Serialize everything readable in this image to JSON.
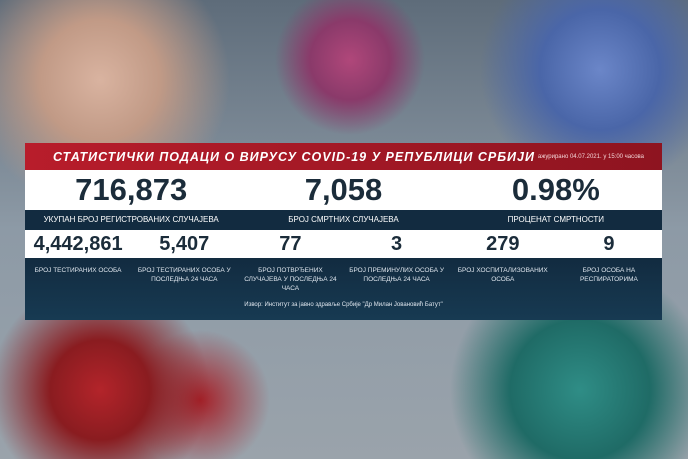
{
  "header": {
    "title": "СТАТИСТИЧКИ ПОДАЦИ О ВИРУСУ COVID-19 У РЕПУБЛИЦИ СРБИЈИ",
    "updated": "ажурирано 04.07.2021. у 15:00 часова"
  },
  "main_stats": [
    {
      "value": "716,873",
      "label": "УКУПАН БРОЈ РЕГИСТРОВАНИХ СЛУЧАЈЕВА"
    },
    {
      "value": "7,058",
      "label": "БРОЈ СМРТНИХ СЛУЧАЈЕВА"
    },
    {
      "value": "0.98%",
      "label": "ПРОЦЕНАТ СМРТНОСТИ"
    }
  ],
  "sub_stats": [
    {
      "value": "4,442,861",
      "label": "БРОЈ ТЕСТИРАНИХ ОСОБА"
    },
    {
      "value": "5,407",
      "label": "БРОЈ ТЕСТИРАНИХ ОСОБА У ПОСЛЕДЊА 24 ЧАСА"
    },
    {
      "value": "77",
      "label": "БРОЈ ПОТВРЂЕНИХ СЛУЧАЈЕВА У ПОСЛЕДЊА 24 ЧАСА"
    },
    {
      "value": "3",
      "label": "БРОЈ ПРЕМИНУЛИХ ОСОБА У ПОСЛЕДЊА 24 ЧАСА"
    },
    {
      "value": "279",
      "label": "БРОЈ ХОСПИТАЛИЗОВАНИХ ОСОБА"
    },
    {
      "value": "9",
      "label": "БРОЈ ОСОБА НА РЕСПИРАТОРИМА"
    }
  ],
  "source": "Извор: Институт за јавно здравље Србије \"Др Милан Јовановић Батут\"",
  "colors": {
    "header_red": "#b81d2b",
    "navy": "#122b40",
    "number": "#1b2c3a"
  }
}
